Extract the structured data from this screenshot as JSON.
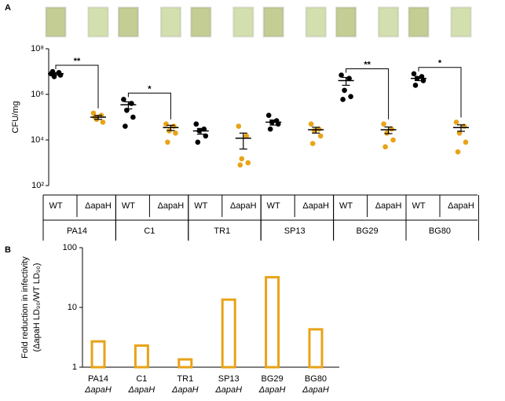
{
  "chart_data": [
    {
      "type": "dotplot",
      "label": "A",
      "ylabel": "CFU/mg",
      "log_y": true,
      "ylim": [
        100,
        100000000
      ],
      "yticks": [
        {
          "value": 100,
          "label": "10²"
        },
        {
          "value": 10000,
          "label": "10⁴"
        },
        {
          "value": 1000000,
          "label": "10⁶"
        },
        {
          "value": 100000000,
          "label": "10⁸"
        }
      ],
      "groups": [
        "PA14",
        "C1",
        "TR1",
        "SP13",
        "BG29",
        "BG80"
      ],
      "series": [
        {
          "name": "WT",
          "color": "#000000",
          "points": [
            [
              8000000,
              9000000,
              6000000,
              7000000,
              10000000
            ],
            [
              600000,
              400000,
              200000,
              100000,
              40000
            ],
            [
              50000,
              30000,
              25000,
              15000,
              8000
            ],
            [
              120000,
              70000,
              60000,
              50000,
              30000
            ],
            [
              7000000,
              5000000,
              1500000,
              800000,
              600000
            ],
            [
              8000000,
              6000000,
              5000000,
              4000000,
              2500000
            ]
          ],
          "means": [
            8000000,
            350000,
            25000,
            60000,
            4000000,
            5000000
          ],
          "errors": [
            1000000,
            120000,
            7000,
            15000,
            1500000,
            1000000
          ]
        },
        {
          "name": "ΔapaH",
          "color": "#e8a317",
          "points": [
            [
              150000,
              120000,
              80000,
              60000,
              100000
            ],
            [
              50000,
              40000,
              25000,
              20000,
              8000
            ],
            [
              40000,
              15000,
              1500,
              1000,
              800
            ],
            [
              50000,
              30000,
              25000,
              15000,
              7000
            ],
            [
              50000,
              30000,
              20000,
              10000,
              5000
            ],
            [
              60000,
              40000,
              20000,
              8000,
              3000
            ]
          ],
          "means": [
            100000,
            35000,
            12000,
            28000,
            28000,
            35000
          ],
          "errors": [
            20000,
            9000,
            8000,
            8000,
            9000,
            11000
          ]
        }
      ],
      "annotations": [
        {
          "group": 0,
          "text": "**"
        },
        {
          "group": 1,
          "text": "*"
        },
        {
          "group": 4,
          "text": "**"
        },
        {
          "group": 5,
          "text": "*"
        }
      ]
    },
    {
      "type": "bar",
      "label": "B",
      "log_y": true,
      "ylabel": [
        "Fold reduction in infectivity",
        "(ΔapaH LD₉₀/WT LD₉₀)"
      ],
      "categories": [
        [
          "PA14",
          "ΔapaH"
        ],
        [
          "C1",
          "ΔapaH"
        ],
        [
          "TR1",
          "ΔapaH"
        ],
        [
          "SP13",
          "ΔapaH"
        ],
        [
          "BG29",
          "ΔapaH"
        ],
        [
          "BG80",
          "ΔapaH"
        ]
      ],
      "values": [
        2.7,
        2.3,
        1.35,
        13.5,
        32,
        4.3
      ],
      "color": "#e8a317",
      "ylim": [
        1,
        100
      ],
      "yticks": [
        1,
        10,
        100
      ]
    }
  ]
}
